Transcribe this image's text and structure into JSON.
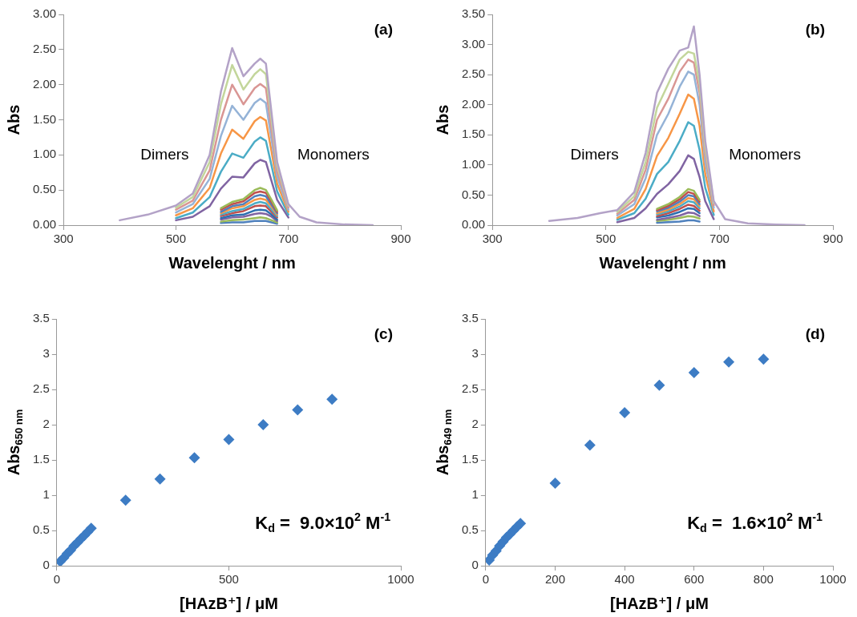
{
  "chart_data": [
    {
      "type": "line",
      "title": "(a)",
      "xlabel": "Wavelenght / nm",
      "ylabel": "Abs",
      "annotations": [
        "Dimers",
        "Monomers"
      ],
      "marker": "none",
      "grid": false,
      "x": [
        400,
        450,
        500,
        530,
        560,
        580,
        600,
        620,
        640,
        650,
        660,
        670,
        680,
        700,
        720,
        750,
        800,
        850
      ],
      "xlim": [
        300,
        900
      ],
      "xticks": [
        300,
        500,
        700,
        900
      ],
      "ylim": [
        0,
        3
      ],
      "yticks": [
        {
          "value": 0,
          "label": "0.00"
        },
        {
          "value": 0.5,
          "label": "0.50"
        },
        {
          "value": 1,
          "label": "1.00"
        },
        {
          "value": 1.5,
          "label": "1.50"
        },
        {
          "value": 2,
          "label": "2.00"
        },
        {
          "value": 2.5,
          "label": "2.50"
        },
        {
          "value": 3,
          "label": "3.00"
        }
      ],
      "series": [
        {
          "color": "#4f81bd",
          "values": [
            null,
            null,
            null,
            null,
            null,
            0.03,
            0.04,
            0.04,
            0.06,
            0.06,
            0.06,
            0.04,
            0.02,
            null,
            null,
            null,
            null,
            null
          ]
        },
        {
          "color": "#9bbb59",
          "values": [
            null,
            null,
            null,
            null,
            null,
            0.05,
            0.07,
            0.08,
            0.1,
            0.11,
            0.1,
            0.07,
            0.04,
            null,
            null,
            null,
            null,
            null
          ]
        },
        {
          "color": "#8064a2",
          "values": [
            null,
            null,
            null,
            null,
            null,
            0.08,
            0.11,
            0.12,
            0.16,
            0.17,
            0.16,
            0.12,
            0.06,
            null,
            null,
            null,
            null,
            null
          ]
        },
        {
          "color": "#2c6fb0",
          "values": [
            null,
            null,
            null,
            null,
            null,
            0.1,
            0.14,
            0.15,
            0.21,
            0.22,
            0.21,
            0.15,
            0.08,
            null,
            null,
            null,
            null,
            null
          ]
        },
        {
          "color": "#c0504d",
          "values": [
            null,
            null,
            null,
            null,
            null,
            0.13,
            0.17,
            0.2,
            0.27,
            0.28,
            0.27,
            0.19,
            0.11,
            null,
            null,
            null,
            null,
            null
          ]
        },
        {
          "color": "#4bacc6",
          "values": [
            null,
            null,
            null,
            null,
            null,
            0.15,
            0.2,
            0.23,
            0.31,
            0.33,
            0.31,
            0.22,
            0.13,
            null,
            null,
            null,
            null,
            null
          ]
        },
        {
          "color": "#f79646",
          "values": [
            null,
            null,
            null,
            null,
            null,
            0.17,
            0.24,
            0.27,
            0.36,
            0.38,
            0.36,
            0.26,
            0.15,
            null,
            null,
            null,
            null,
            null
          ]
        },
        {
          "color": "#4f81bd",
          "values": [
            null,
            null,
            null,
            null,
            null,
            0.19,
            0.27,
            0.3,
            0.41,
            0.43,
            0.41,
            0.29,
            0.17,
            null,
            null,
            null,
            null,
            null
          ]
        },
        {
          "color": "#c0504d",
          "values": [
            null,
            null,
            null,
            null,
            null,
            0.22,
            0.3,
            0.34,
            0.46,
            0.48,
            0.46,
            0.33,
            0.19,
            null,
            null,
            null,
            null,
            null
          ]
        },
        {
          "color": "#9bbb59",
          "values": [
            null,
            null,
            null,
            null,
            null,
            0.24,
            0.33,
            0.37,
            0.5,
            0.53,
            0.5,
            0.36,
            0.21,
            null,
            null,
            null,
            null,
            null
          ]
        },
        {
          "color": "#8064a2",
          "values": [
            null,
            null,
            0.07,
            0.12,
            0.27,
            0.52,
            0.69,
            0.68,
            0.88,
            0.93,
            0.9,
            0.63,
            0.36,
            0.11,
            null,
            null,
            null,
            null
          ]
        },
        {
          "color": "#4bacc6",
          "values": [
            null,
            null,
            0.1,
            0.18,
            0.4,
            0.76,
            1.02,
            0.96,
            1.19,
            1.25,
            1.2,
            0.85,
            0.48,
            0.15,
            null,
            null,
            null,
            null
          ]
        },
        {
          "color": "#f79646",
          "values": [
            null,
            null,
            0.14,
            0.24,
            0.53,
            1.02,
            1.36,
            1.23,
            1.48,
            1.54,
            1.49,
            1.05,
            0.59,
            0.19,
            null,
            null,
            null,
            null
          ]
        },
        {
          "color": "#95b3d7",
          "values": [
            null,
            null,
            0.18,
            0.3,
            0.66,
            1.27,
            1.7,
            1.5,
            1.74,
            1.8,
            1.74,
            1.22,
            0.69,
            0.22,
            null,
            null,
            null,
            null
          ]
        },
        {
          "color": "#d99694",
          "values": [
            null,
            null,
            0.22,
            0.35,
            0.78,
            1.5,
            2.0,
            1.72,
            1.95,
            2.01,
            1.95,
            1.36,
            0.77,
            0.25,
            null,
            null,
            null,
            null
          ]
        },
        {
          "color": "#c3d69b",
          "values": [
            null,
            null,
            0.25,
            0.4,
            0.9,
            1.72,
            2.28,
            1.93,
            2.15,
            2.22,
            2.15,
            1.5,
            0.85,
            0.28,
            null,
            null,
            null,
            null
          ]
        },
        {
          "color": "#b3a2c7",
          "values": [
            0.07,
            0.15,
            0.28,
            0.45,
            1.0,
            1.9,
            2.52,
            2.12,
            2.3,
            2.37,
            2.3,
            1.6,
            0.9,
            0.3,
            0.12,
            0.04,
            0.01,
            0
          ]
        }
      ]
    },
    {
      "type": "line",
      "title": "(b)",
      "xlabel": "Wavelenght / nm",
      "ylabel": "Abs",
      "annotations": [
        "Dimers",
        "Monomers"
      ],
      "marker": "none",
      "grid": false,
      "x": [
        400,
        450,
        490,
        520,
        550,
        570,
        590,
        610,
        630,
        645,
        655,
        665,
        675,
        690,
        710,
        750,
        800,
        850
      ],
      "xlim": [
        300,
        900
      ],
      "xticks": [
        300,
        500,
        700,
        900
      ],
      "ylim": [
        0,
        3.5
      ],
      "yticks": [
        {
          "value": 0,
          "label": "0.00"
        },
        {
          "value": 0.5,
          "label": "0.50"
        },
        {
          "value": 1,
          "label": "1.00"
        },
        {
          "value": 1.5,
          "label": "1.50"
        },
        {
          "value": 2,
          "label": "2.00"
        },
        {
          "value": 2.5,
          "label": "2.50"
        },
        {
          "value": 3,
          "label": "3.00"
        },
        {
          "value": 3.5,
          "label": "3.50"
        }
      ],
      "series": [
        {
          "color": "#4f81bd",
          "values": [
            null,
            null,
            null,
            null,
            null,
            null,
            0.04,
            0.05,
            0.06,
            0.08,
            0.08,
            0.06,
            null,
            null,
            null,
            null,
            null,
            null
          ]
        },
        {
          "color": "#9bbb59",
          "values": [
            null,
            null,
            null,
            null,
            null,
            null,
            0.07,
            0.09,
            0.12,
            0.15,
            0.14,
            0.11,
            null,
            null,
            null,
            null,
            null,
            null
          ]
        },
        {
          "color": "#8064a2",
          "values": [
            null,
            null,
            null,
            null,
            null,
            null,
            0.09,
            0.12,
            0.16,
            0.21,
            0.2,
            0.15,
            null,
            null,
            null,
            null,
            null,
            null
          ]
        },
        {
          "color": "#2c6fb0",
          "values": [
            null,
            null,
            null,
            null,
            null,
            null,
            0.13,
            0.16,
            0.22,
            0.28,
            0.27,
            0.2,
            null,
            null,
            null,
            null,
            null,
            null
          ]
        },
        {
          "color": "#c0504d",
          "values": [
            null,
            null,
            null,
            null,
            null,
            null,
            0.15,
            0.2,
            0.27,
            0.34,
            0.32,
            0.24,
            null,
            null,
            null,
            null,
            null,
            null
          ]
        },
        {
          "color": "#4bacc6",
          "values": [
            null,
            null,
            null,
            null,
            null,
            null,
            0.18,
            0.23,
            0.31,
            0.4,
            0.38,
            0.28,
            null,
            null,
            null,
            null,
            null,
            null
          ]
        },
        {
          "color": "#f79646",
          "values": [
            null,
            null,
            null,
            null,
            null,
            null,
            0.2,
            0.26,
            0.35,
            0.45,
            0.43,
            0.32,
            null,
            null,
            null,
            null,
            null,
            null
          ]
        },
        {
          "color": "#4f81bd",
          "values": [
            null,
            null,
            null,
            null,
            null,
            null,
            0.23,
            0.29,
            0.39,
            0.5,
            0.48,
            0.35,
            null,
            null,
            null,
            null,
            null,
            null
          ]
        },
        {
          "color": "#c0504d",
          "values": [
            null,
            null,
            null,
            null,
            null,
            null,
            0.25,
            0.32,
            0.43,
            0.55,
            0.52,
            0.39,
            null,
            null,
            null,
            null,
            null,
            null
          ]
        },
        {
          "color": "#9bbb59",
          "values": [
            null,
            null,
            null,
            null,
            null,
            null,
            0.27,
            0.35,
            0.47,
            0.6,
            0.57,
            0.42,
            null,
            null,
            null,
            null,
            null,
            null
          ]
        },
        {
          "color": "#8064a2",
          "values": [
            null,
            null,
            null,
            0.05,
            0.12,
            0.28,
            0.52,
            0.68,
            0.9,
            1.16,
            1.1,
            0.8,
            0.4,
            0.1,
            null,
            null,
            null,
            null
          ]
        },
        {
          "color": "#4bacc6",
          "values": [
            null,
            null,
            null,
            0.09,
            0.2,
            0.44,
            0.85,
            1.05,
            1.4,
            1.71,
            1.65,
            1.25,
            0.62,
            0.17,
            null,
            null,
            null,
            null
          ]
        },
        {
          "color": "#f79646",
          "values": [
            null,
            null,
            null,
            0.12,
            0.27,
            0.6,
            1.15,
            1.45,
            1.85,
            2.17,
            2.1,
            1.65,
            0.85,
            0.23,
            null,
            null,
            null,
            null
          ]
        },
        {
          "color": "#95b3d7",
          "values": [
            null,
            null,
            null,
            0.16,
            0.35,
            0.78,
            1.5,
            1.85,
            2.3,
            2.55,
            2.5,
            2.0,
            1.05,
            0.29,
            null,
            null,
            null,
            null
          ]
        },
        {
          "color": "#d99694",
          "values": [
            null,
            null,
            null,
            0.19,
            0.42,
            0.92,
            1.75,
            2.1,
            2.55,
            2.75,
            2.7,
            2.2,
            1.2,
            0.33,
            null,
            null,
            null,
            null
          ]
        },
        {
          "color": "#c3d69b",
          "values": [
            null,
            null,
            null,
            0.22,
            0.48,
            1.05,
            1.95,
            2.35,
            2.75,
            2.88,
            2.85,
            2.35,
            1.3,
            0.37,
            null,
            null,
            null,
            null
          ]
        },
        {
          "color": "#b3a2c7",
          "values": [
            0.07,
            0.12,
            0.2,
            0.25,
            0.55,
            1.2,
            2.2,
            2.6,
            2.9,
            2.95,
            3.3,
            2.5,
            1.4,
            0.4,
            0.1,
            0.03,
            0.01,
            0
          ]
        }
      ]
    },
    {
      "type": "scatter",
      "title": "(c)",
      "xlabel": "[HAzB⁺] / μM",
      "ylabel": "Abs$_{650 nm}$",
      "annotations": [
        "K$_{d}$ =  9.0×10$^{2}$ M$^{-1}$"
      ],
      "marker": "diamond",
      "grid": false,
      "x": [
        10,
        20,
        30,
        40,
        50,
        60,
        70,
        80,
        90,
        100,
        200,
        300,
        400,
        500,
        600,
        700,
        800
      ],
      "xlim": [
        0,
        1000
      ],
      "xticks": [
        0,
        500,
        1000
      ],
      "ylim": [
        0,
        3.5
      ],
      "yticks": [
        0,
        0.5,
        1,
        1.5,
        2,
        2.5,
        3,
        3.5
      ],
      "series": [
        {
          "color": "#3d7cc4",
          "values": [
            0.06,
            0.11,
            0.17,
            0.22,
            0.28,
            0.33,
            0.38,
            0.43,
            0.48,
            0.53,
            0.93,
            1.23,
            1.53,
            1.79,
            2.0,
            2.21,
            2.36
          ]
        }
      ]
    },
    {
      "type": "scatter",
      "title": "(d)",
      "xlabel": "[HAzB⁺] / μM",
      "ylabel": "Abs$_{649 nm}$",
      "annotations": [
        "K$_{d}$ =  1.6×10$^{2}$ M$^{-1}$"
      ],
      "marker": "diamond",
      "grid": false,
      "x": [
        10,
        20,
        30,
        40,
        50,
        60,
        70,
        80,
        90,
        100,
        200,
        300,
        400,
        500,
        600,
        700,
        800
      ],
      "xlim": [
        0,
        1000
      ],
      "xticks": [
        0,
        200,
        400,
        600,
        800,
        1000
      ],
      "ylim": [
        0,
        3.5
      ],
      "yticks": [
        0,
        0.5,
        1,
        1.5,
        2,
        2.5,
        3,
        3.5
      ],
      "series": [
        {
          "color": "#3d7cc4",
          "values": [
            0.08,
            0.15,
            0.21,
            0.28,
            0.34,
            0.4,
            0.45,
            0.5,
            0.55,
            0.6,
            1.17,
            1.71,
            2.17,
            2.56,
            2.74,
            2.89,
            2.93
          ]
        }
      ]
    }
  ]
}
